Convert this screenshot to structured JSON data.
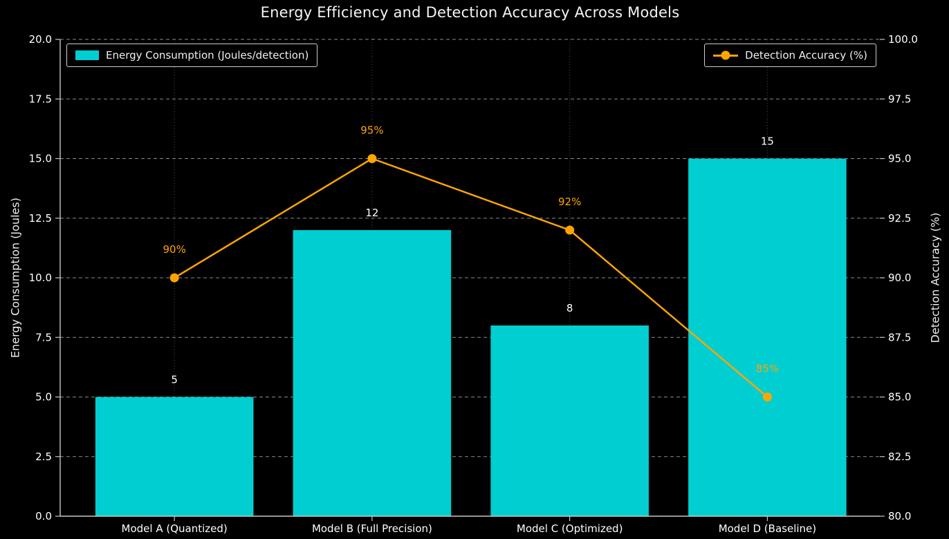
{
  "chart_data": {
    "type": "bar",
    "title": "Energy Efficiency and Detection Accuracy Across Models",
    "background": "#000000",
    "categories": [
      "Model A (Quantized)",
      "Model B (Full Precision)",
      "Model C (Optimized)",
      "Model D (Baseline)"
    ],
    "series": [
      {
        "name": "Energy Consumption (Joules/detection)",
        "type": "bar",
        "axis": "left",
        "color": "#00CED1",
        "values": [
          5,
          12,
          8,
          15
        ],
        "value_labels": [
          "5",
          "12",
          "8",
          "15"
        ],
        "value_label_color": "#ffffff"
      },
      {
        "name": "Detection Accuracy (%)",
        "type": "line",
        "axis": "right",
        "color": "#FFA500",
        "values": [
          90,
          95,
          92,
          85
        ],
        "value_labels": [
          "90%",
          "95%",
          "92%",
          "85%"
        ],
        "value_label_color": "#FFA500",
        "marker": "circle"
      }
    ],
    "left_axis": {
      "label": "Energy Consumption (Joules)",
      "min": 0,
      "max": 20,
      "step": 2.5,
      "ticks": [
        "0.0",
        "2.5",
        "5.0",
        "7.5",
        "10.0",
        "12.5",
        "15.0",
        "17.5",
        "20.0"
      ]
    },
    "right_axis": {
      "label": "Detection Accuracy (%)",
      "min": 80,
      "max": 100,
      "step": 2.5,
      "ticks": [
        "80.0",
        "82.5",
        "85.0",
        "87.5",
        "90.0",
        "92.5",
        "95.0",
        "97.5",
        "100.0"
      ]
    },
    "grid": {
      "horizontal": "dashed",
      "vertical": "dotted",
      "enabled": true
    },
    "legend": [
      {
        "label": "Energy Consumption (Joules/detection)",
        "position": "top-left",
        "swatch": "bar"
      },
      {
        "label": "Detection Accuracy (%)",
        "position": "top-right",
        "swatch": "line-marker"
      }
    ],
    "tick_label_color": "#ffffff",
    "spine_color": "#c8c8c8"
  }
}
